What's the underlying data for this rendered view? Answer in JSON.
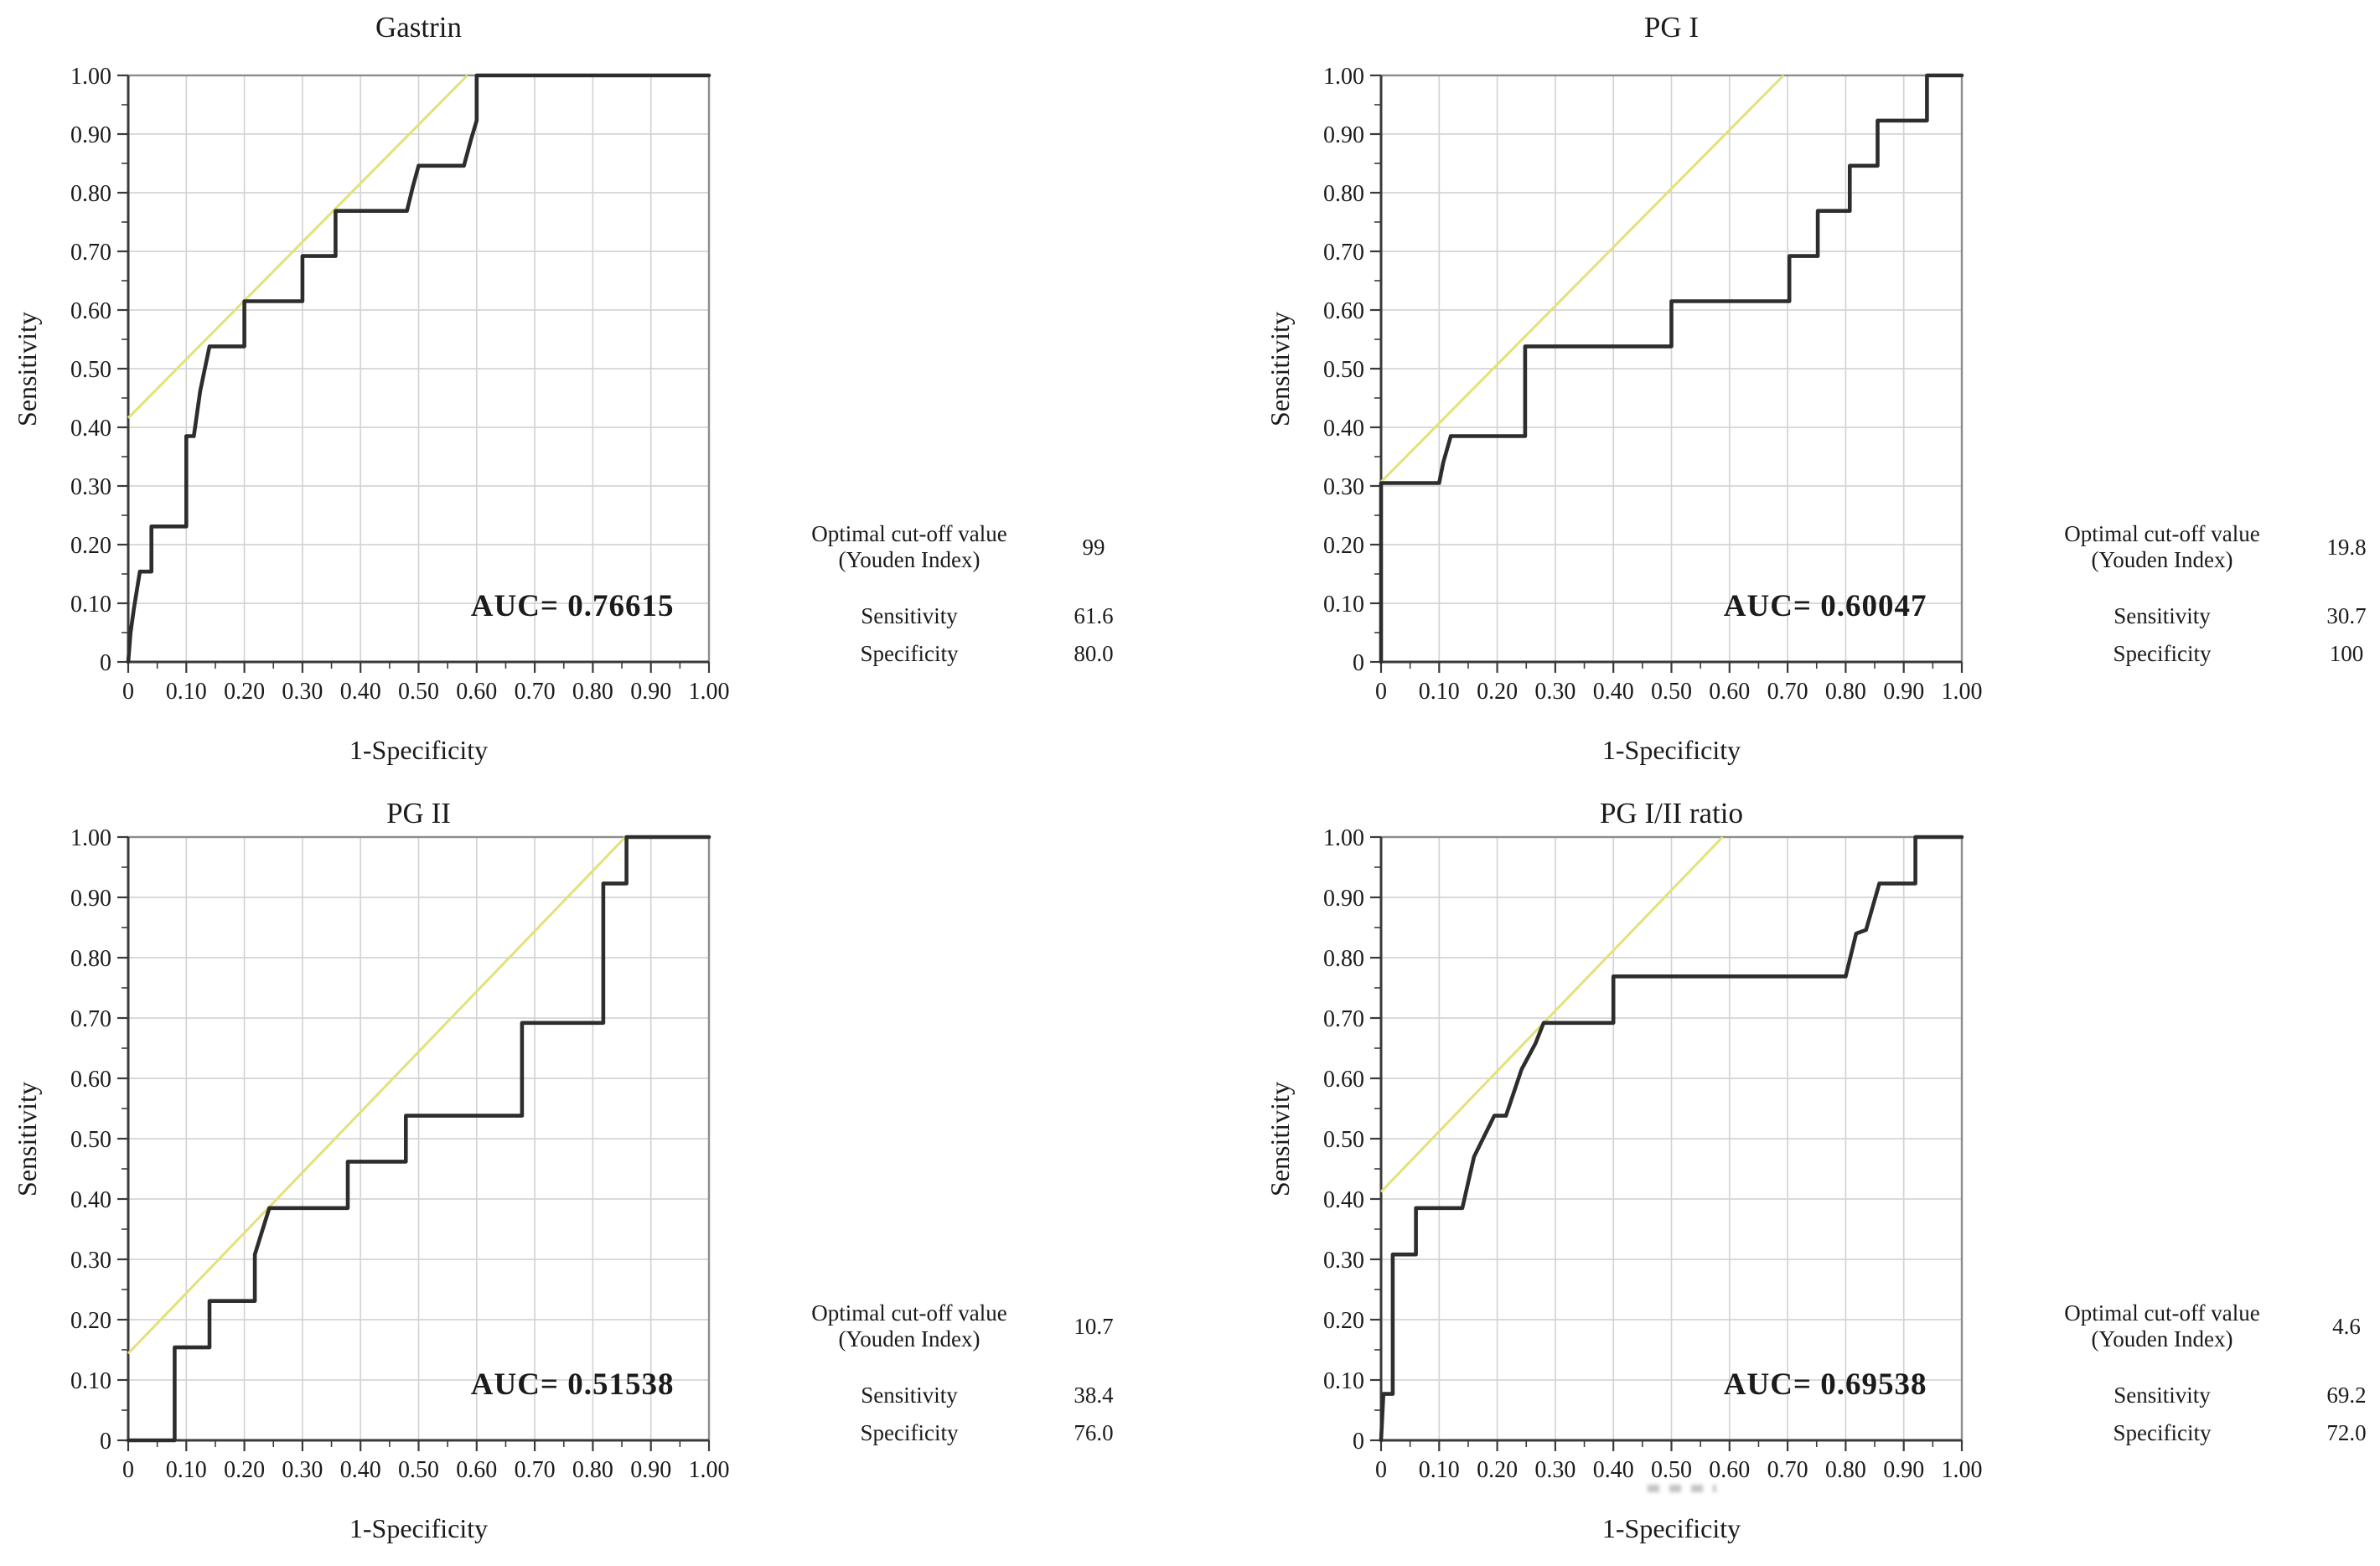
{
  "figure": {
    "background": "#ffffff",
    "stats_labels": {
      "cutoff_line1": "Optimal cut-off value",
      "cutoff_line2": "(Youden Index)",
      "sensitivity": "Sensitivity",
      "specificity": "Specificity"
    },
    "colors": {
      "roc_curve": "#2d2d2d",
      "reference_line": "#e2e27a",
      "grid": "#d4d4d4",
      "plot_border": "#8c8c8c",
      "axis": "#3a3a3a",
      "text": "#1b1b1b"
    }
  },
  "chart_data": [
    {
      "type": "line",
      "title": "Gastrin",
      "xlabel": "1-Specificity",
      "ylabel": "Sensitivity",
      "xlim": [
        0,
        1
      ],
      "ylim": [
        0,
        1
      ],
      "grid": true,
      "x_tick_labels": [
        "0",
        "0.10",
        "0.20",
        "0.30",
        "0.40",
        "0.50",
        "0.60",
        "0.70",
        "0.80",
        "0.90",
        "1.00"
      ],
      "y_tick_labels": [
        "1.00",
        "0.90",
        "0.80",
        "0.70",
        "0.60",
        "0.50",
        "0.40",
        "0.30",
        "0.20",
        "0.10",
        "0"
      ],
      "minor_tick_step": 0.05,
      "auc": 0.76615,
      "auc_label": "AUC= 0.76615",
      "reference_line": [
        [
          0,
          0.416
        ],
        [
          0.584,
          1
        ]
      ],
      "roc_points": [
        [
          0,
          0
        ],
        [
          0.004,
          0.05
        ],
        [
          0.01,
          0.092
        ],
        [
          0.02,
          0.154
        ],
        [
          0.04,
          0.154
        ],
        [
          0.04,
          0.231
        ],
        [
          0.1,
          0.231
        ],
        [
          0.1,
          0.385
        ],
        [
          0.113,
          0.385
        ],
        [
          0.124,
          0.462
        ],
        [
          0.14,
          0.538
        ],
        [
          0.2,
          0.538
        ],
        [
          0.2,
          0.615
        ],
        [
          0.3,
          0.615
        ],
        [
          0.3,
          0.692
        ],
        [
          0.357,
          0.692
        ],
        [
          0.357,
          0.769
        ],
        [
          0.48,
          0.769
        ],
        [
          0.49,
          0.81
        ],
        [
          0.5,
          0.846
        ],
        [
          0.578,
          0.846
        ],
        [
          0.59,
          0.89
        ],
        [
          0.6,
          0.923
        ],
        [
          0.6,
          1
        ],
        [
          1,
          1
        ]
      ],
      "stats": {
        "optimal_cutoff": "99",
        "sensitivity": "61.6",
        "specificity": "80.0"
      }
    },
    {
      "type": "line",
      "title": "PG I",
      "xlabel": "1-Specificity",
      "ylabel": "Sensitivity",
      "xlim": [
        0,
        1
      ],
      "ylim": [
        0,
        1
      ],
      "grid": true,
      "x_tick_labels": [
        "0",
        "0.10",
        "0.20",
        "0.30",
        "0.40",
        "0.50",
        "0.60",
        "0.70",
        "0.80",
        "0.90",
        "1.00"
      ],
      "y_tick_labels": [
        "1.00",
        "0.90",
        "0.80",
        "0.70",
        "0.60",
        "0.50",
        "0.40",
        "0.30",
        "0.20",
        "0.10",
        "0"
      ],
      "minor_tick_step": 0.05,
      "auc": 0.60047,
      "auc_label": "AUC= 0.60047",
      "reference_line": [
        [
          0,
          0.307
        ],
        [
          0.693,
          1
        ]
      ],
      "roc_points": [
        [
          0,
          0
        ],
        [
          0,
          0.305
        ],
        [
          0.1,
          0.305
        ],
        [
          0.107,
          0.34
        ],
        [
          0.12,
          0.385
        ],
        [
          0.248,
          0.385
        ],
        [
          0.248,
          0.538
        ],
        [
          0.5,
          0.538
        ],
        [
          0.5,
          0.615
        ],
        [
          0.703,
          0.615
        ],
        [
          0.703,
          0.692
        ],
        [
          0.752,
          0.692
        ],
        [
          0.752,
          0.769
        ],
        [
          0.807,
          0.769
        ],
        [
          0.807,
          0.846
        ],
        [
          0.855,
          0.846
        ],
        [
          0.855,
          0.923
        ],
        [
          0.94,
          0.923
        ],
        [
          0.94,
          1
        ],
        [
          1,
          1
        ]
      ],
      "stats": {
        "optimal_cutoff": "19.8",
        "sensitivity": "30.7",
        "specificity": "100"
      }
    },
    {
      "type": "line",
      "title": "PG II",
      "xlabel": "1-Specificity",
      "ylabel": "Sensitivity",
      "xlim": [
        0,
        1
      ],
      "ylim": [
        0,
        1
      ],
      "grid": true,
      "x_tick_labels": [
        "0",
        "0.10",
        "0.20",
        "0.30",
        "0.40",
        "0.50",
        "0.60",
        "0.70",
        "0.80",
        "0.90",
        "1.00"
      ],
      "y_tick_labels": [
        "1.00",
        "0.90",
        "0.80",
        "0.70",
        "0.60",
        "0.50",
        "0.40",
        "0.30",
        "0.20",
        "0.10",
        "0"
      ],
      "minor_tick_step": 0.05,
      "auc": 0.51538,
      "auc_label": "AUC= 0.51538",
      "reference_line": [
        [
          0,
          0.144
        ],
        [
          0.856,
          1
        ]
      ],
      "roc_points": [
        [
          0,
          0
        ],
        [
          0.08,
          0
        ],
        [
          0.08,
          0.154
        ],
        [
          0.14,
          0.154
        ],
        [
          0.14,
          0.231
        ],
        [
          0.218,
          0.231
        ],
        [
          0.218,
          0.308
        ],
        [
          0.23,
          0.345
        ],
        [
          0.243,
          0.385
        ],
        [
          0.378,
          0.385
        ],
        [
          0.378,
          0.462
        ],
        [
          0.478,
          0.462
        ],
        [
          0.478,
          0.538
        ],
        [
          0.678,
          0.538
        ],
        [
          0.678,
          0.692
        ],
        [
          0.818,
          0.692
        ],
        [
          0.818,
          0.923
        ],
        [
          0.858,
          0.923
        ],
        [
          0.858,
          1
        ],
        [
          1,
          1
        ]
      ],
      "stats": {
        "optimal_cutoff": "10.7",
        "sensitivity": "38.4",
        "specificity": "76.0"
      }
    },
    {
      "type": "line",
      "title": "PG I/II ratio",
      "xlabel": "1-Specificity",
      "ylabel": "Sensitivity",
      "xlim": [
        0,
        1
      ],
      "ylim": [
        0,
        1
      ],
      "grid": true,
      "x_tick_labels": [
        "0",
        "0.10",
        "0.20",
        "0.30",
        "0.40",
        "0.50",
        "0.60",
        "0.70",
        "0.80",
        "0.90",
        "1.00"
      ],
      "y_tick_labels": [
        "1.00",
        "0.90",
        "0.80",
        "0.70",
        "0.60",
        "0.50",
        "0.40",
        "0.30",
        "0.20",
        "0.10",
        "0"
      ],
      "minor_tick_step": 0.05,
      "auc": 0.69538,
      "auc_label": "AUC= 0.69538",
      "reference_line": [
        [
          0,
          0.412
        ],
        [
          0.588,
          1
        ]
      ],
      "roc_points": [
        [
          0,
          0
        ],
        [
          0.004,
          0.077
        ],
        [
          0.02,
          0.077
        ],
        [
          0.02,
          0.308
        ],
        [
          0.06,
          0.308
        ],
        [
          0.06,
          0.385
        ],
        [
          0.14,
          0.385
        ],
        [
          0.16,
          0.47
        ],
        [
          0.178,
          0.505
        ],
        [
          0.195,
          0.538
        ],
        [
          0.215,
          0.538
        ],
        [
          0.242,
          0.615
        ],
        [
          0.266,
          0.658
        ],
        [
          0.28,
          0.692
        ],
        [
          0.4,
          0.692
        ],
        [
          0.4,
          0.769
        ],
        [
          0.8,
          0.769
        ],
        [
          0.818,
          0.84
        ],
        [
          0.835,
          0.846
        ],
        [
          0.858,
          0.923
        ],
        [
          0.92,
          0.923
        ],
        [
          0.92,
          1
        ],
        [
          1,
          1
        ]
      ],
      "stats": {
        "optimal_cutoff": "4.6",
        "sensitivity": "69.2",
        "specificity": "72.0"
      }
    }
  ]
}
